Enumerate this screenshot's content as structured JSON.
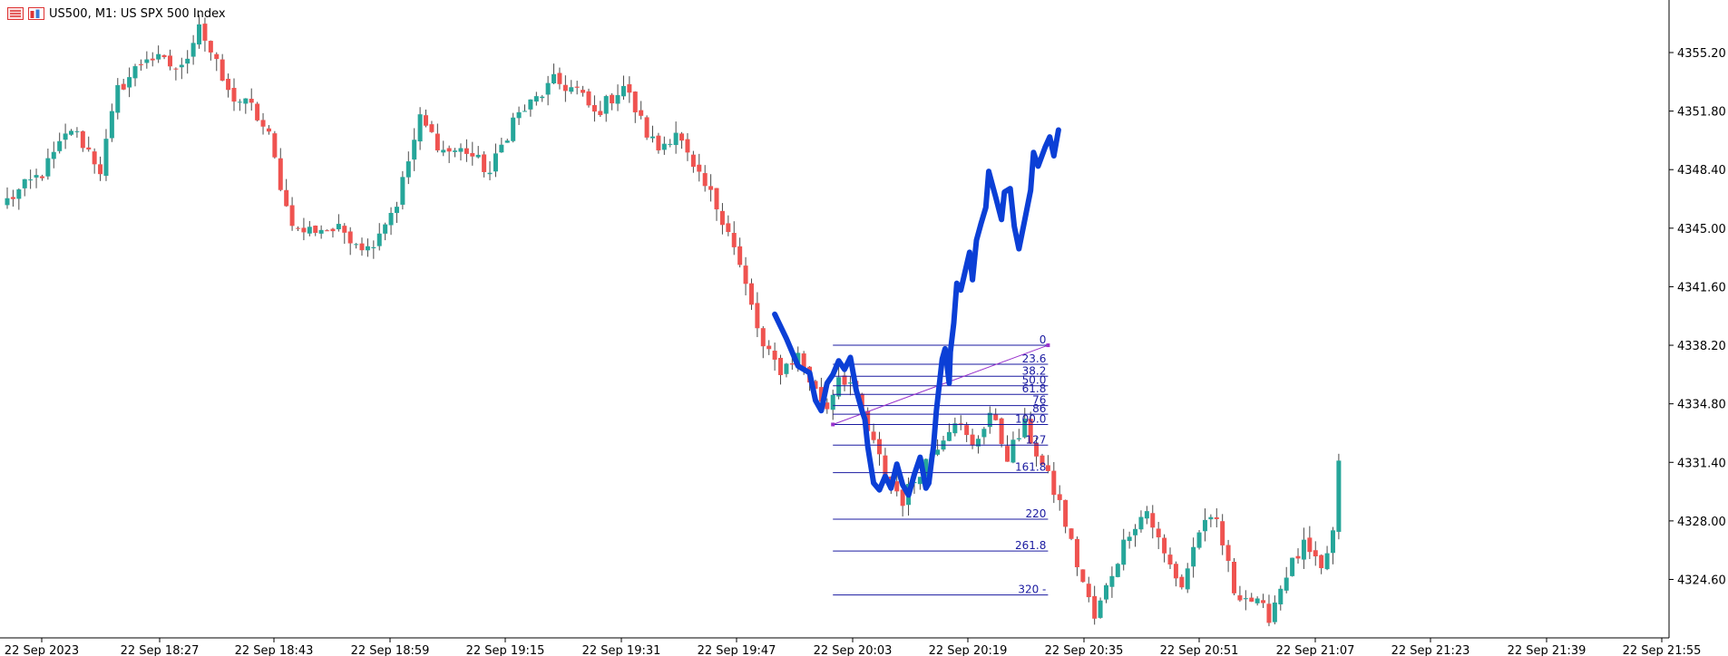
{
  "header": {
    "symbol": "US500",
    "timeframe": "M1",
    "description": "US SPX 500 Index",
    "title_text": "US500, M1:  US SPX 500 Index",
    "icons": [
      "chart-list-icon",
      "chart-window-icon"
    ]
  },
  "colors": {
    "bull": "#26a69a",
    "bear": "#ef5350",
    "wick": "#4a4a4a",
    "fib_lines": "#1a1aa0",
    "fib_trend": "#9932cc",
    "drawing": "#0b3fd6",
    "axis": "#000000",
    "background": "#ffffff"
  },
  "chart_data": {
    "type": "candlestick",
    "symbol": "US500",
    "timeframe": "M1",
    "ylim": [
      4320.0,
      4358.0
    ],
    "y_ticks": [
      "4355.20",
      "4351.80",
      "4348.40",
      "4345.00",
      "4341.60",
      "4338.20",
      "4334.80",
      "4331.40",
      "4328.00",
      "4324.60"
    ],
    "x_ticks": [
      "22 Sep 2023",
      "22 Sep 18:27",
      "22 Sep 18:43",
      "22 Sep 18:59",
      "22 Sep 19:15",
      "22 Sep 19:31",
      "22 Sep 19:47",
      "22 Sep 20:03",
      "22 Sep 20:19",
      "22 Sep 20:35",
      "22 Sep 20:51",
      "22 Sep 21:07",
      "22 Sep 21:23",
      "22 Sep 21:39",
      "22 Sep 21:55"
    ],
    "close_anchors": [
      [
        0,
        4346.6
      ],
      [
        6,
        4348.2
      ],
      [
        11,
        4350.8
      ],
      [
        14,
        4349.5
      ],
      [
        16,
        4348.4
      ],
      [
        19,
        4353.0
      ],
      [
        24,
        4355.0
      ],
      [
        30,
        4354.2
      ],
      [
        33,
        4357.0
      ],
      [
        34,
        4356.0
      ],
      [
        38,
        4352.8
      ],
      [
        42,
        4352.0
      ],
      [
        45,
        4350.3
      ],
      [
        48,
        4346.2
      ],
      [
        50,
        4344.8
      ],
      [
        54,
        4345.0
      ],
      [
        58,
        4344.8
      ],
      [
        62,
        4343.8
      ],
      [
        67,
        4346.5
      ],
      [
        71,
        4351.3
      ],
      [
        75,
        4349.5
      ],
      [
        79,
        4349.5
      ],
      [
        83,
        4348.2
      ],
      [
        87,
        4351.3
      ],
      [
        91,
        4352.5
      ],
      [
        94,
        4353.5
      ],
      [
        98,
        4353.0
      ],
      [
        101,
        4351.6
      ],
      [
        106,
        4353.3
      ],
      [
        110,
        4350.5
      ],
      [
        112,
        4349.6
      ],
      [
        115,
        4350.7
      ],
      [
        118,
        4348.3
      ],
      [
        121,
        4346.9
      ],
      [
        124,
        4345.0
      ],
      [
        127,
        4341.6
      ],
      [
        130,
        4338.0
      ],
      [
        133,
        4336.8
      ],
      [
        136,
        4337.6
      ],
      [
        139,
        4335.5
      ],
      [
        141,
        4334.6
      ],
      [
        143,
        4336.5
      ],
      [
        145,
        4336.0
      ],
      [
        148,
        4333.2
      ],
      [
        151,
        4330.8
      ],
      [
        154,
        4329.2
      ],
      [
        157,
        4331.0
      ],
      [
        160,
        4332.5
      ],
      [
        163,
        4334.0
      ],
      [
        166,
        4332.2
      ],
      [
        169,
        4334.3
      ],
      [
        172,
        4331.8
      ],
      [
        175,
        4333.5
      ],
      [
        178,
        4331.2
      ],
      [
        181,
        4329.0
      ],
      [
        184,
        4325.5
      ],
      [
        187,
        4322.3
      ],
      [
        190,
        4325.0
      ],
      [
        193,
        4327.5
      ],
      [
        196,
        4328.6
      ],
      [
        199,
        4326.0
      ],
      [
        202,
        4324.2
      ],
      [
        205,
        4327.5
      ],
      [
        208,
        4328.0
      ],
      [
        211,
        4324.0
      ],
      [
        214,
        4323.4
      ],
      [
        217,
        4322.5
      ],
      [
        220,
        4325.0
      ],
      [
        223,
        4326.5
      ],
      [
        226,
        4325.0
      ],
      [
        228,
        4327.3
      ],
      [
        229,
        4331.5
      ]
    ],
    "fibonacci": {
      "levels": [
        "0",
        "23.6",
        "38.2",
        "50.0",
        "61.8",
        "76",
        "86",
        "100.0",
        "127",
        "161.8",
        "220",
        "261.8",
        "320"
      ],
      "label_texts": [
        "0",
        "23.6",
        "38.2",
        "50.0",
        "61.8",
        "76",
        "86",
        "100.0",
        "127",
        "161.8",
        "220",
        "261.8",
        "320 -"
      ],
      "prices": [
        4338.2,
        4337.1,
        4336.4,
        4335.85,
        4335.35,
        4334.7,
        4334.2,
        4333.6,
        4332.4,
        4330.8,
        4328.1,
        4326.25,
        4323.7
      ],
      "trend_from": {
        "bar": 142,
        "price": 4333.6
      },
      "trend_to": {
        "bar": 179,
        "price": 4338.2
      }
    },
    "drawing_path": [
      [
        132,
        4340.0
      ],
      [
        134,
        4338.6
      ],
      [
        136,
        4337.0
      ],
      [
        138,
        4336.6
      ],
      [
        139,
        4335.0
      ],
      [
        140,
        4334.4
      ],
      [
        141,
        4336.0
      ],
      [
        142,
        4336.5
      ],
      [
        143,
        4337.3
      ],
      [
        144,
        4336.8
      ],
      [
        145,
        4337.5
      ],
      [
        146,
        4335.6
      ],
      [
        147,
        4334.4
      ],
      [
        147.5,
        4333.9
      ],
      [
        148,
        4332.3
      ],
      [
        149,
        4330.2
      ],
      [
        150,
        4329.8
      ],
      [
        151,
        4330.6
      ],
      [
        152,
        4329.9
      ],
      [
        153,
        4331.3
      ],
      [
        154,
        4330.1
      ],
      [
        155,
        4329.5
      ],
      [
        156,
        4330.7
      ],
      [
        157,
        4331.7
      ],
      [
        158,
        4329.9
      ],
      [
        158.5,
        4330.2
      ],
      [
        159,
        4331.6
      ],
      [
        159.3,
        4332.3
      ],
      [
        159.8,
        4334.4
      ],
      [
        160.8,
        4337.4
      ],
      [
        161.3,
        4338.0
      ],
      [
        162,
        4336.0
      ],
      [
        162.2,
        4337.8
      ],
      [
        162.8,
        4339.5
      ],
      [
        163.3,
        4341.8
      ],
      [
        164,
        4341.4
      ],
      [
        165.5,
        4343.6
      ],
      [
        166,
        4342.0
      ],
      [
        166.7,
        4344.3
      ],
      [
        167.5,
        4345.3
      ],
      [
        168.3,
        4346.2
      ],
      [
        168.8,
        4348.3
      ],
      [
        170,
        4346.8
      ],
      [
        171,
        4345.5
      ],
      [
        171.5,
        4347.1
      ],
      [
        172.5,
        4347.3
      ],
      [
        173.2,
        4345.1
      ],
      [
        174,
        4343.8
      ],
      [
        175,
        4345.5
      ],
      [
        176,
        4347.2
      ],
      [
        176.5,
        4349.4
      ],
      [
        177.3,
        4348.6
      ],
      [
        178.5,
        4349.7
      ],
      [
        179.3,
        4350.3
      ],
      [
        180,
        4349.2
      ],
      [
        180.8,
        4350.7
      ]
    ]
  }
}
